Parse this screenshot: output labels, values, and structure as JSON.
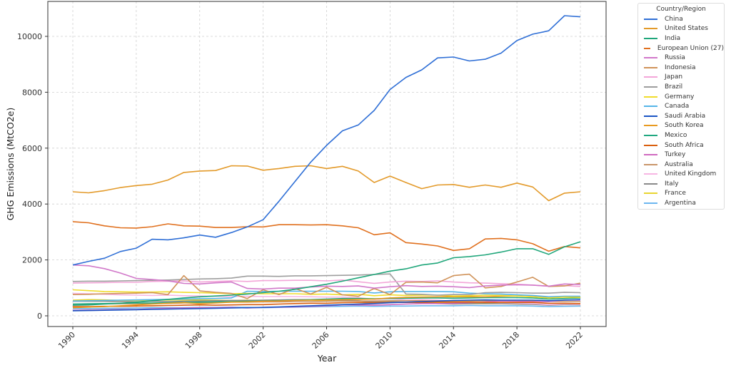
{
  "chart_data": {
    "type": "line",
    "title": "",
    "xlabel": "Year",
    "ylabel": "GHG Emissions (MtCO2e)",
    "xlim": [
      1987.5,
      2023.6
    ],
    "ylim": [
      -300,
      11200
    ],
    "grid": true,
    "legend_position": "outside-right-top",
    "legend_title": "Country/Region",
    "x_ticks": [
      1990,
      1994,
      1998,
      2002,
      2006,
      2010,
      2014,
      2018,
      2022
    ],
    "y_ticks": [
      0,
      2000,
      4000,
      6000,
      8000,
      10000
    ],
    "x": [
      1990,
      1991,
      1992,
      1993,
      1994,
      1995,
      1996,
      1997,
      1998,
      1999,
      2000,
      2001,
      2002,
      2003,
      2004,
      2005,
      2006,
      2007,
      2008,
      2009,
      2010,
      2011,
      2012,
      2013,
      2014,
      2015,
      2016,
      2017,
      2018,
      2019,
      2020,
      2021,
      2022
    ],
    "series": [
      {
        "name": "China",
        "color": "#2f6fd6",
        "values": [
          1820,
          1950,
          2060,
          2300,
          2420,
          2740,
          2720,
          2790,
          2890,
          2810,
          2980,
          3180,
          3440,
          4100,
          4800,
          5500,
          6100,
          6620,
          6830,
          7350,
          8100,
          8530,
          8800,
          9230,
          9260,
          9120,
          9180,
          9400,
          9850,
          10080,
          10200,
          10740,
          10700
        ]
      },
      {
        "name": "United States",
        "color": "#e39a2a",
        "values": [
          4440,
          4400,
          4480,
          4590,
          4660,
          4710,
          4860,
          5130,
          5180,
          5200,
          5370,
          5360,
          5210,
          5270,
          5350,
          5370,
          5270,
          5350,
          5180,
          4770,
          5000,
          4770,
          4550,
          4680,
          4700,
          4600,
          4680,
          4600,
          4750,
          4610,
          4120,
          4390,
          4440
        ]
      },
      {
        "name": "India",
        "color": "#1fa67a",
        "values": [
          380,
          390,
          420,
          450,
          490,
          540,
          590,
          640,
          680,
          710,
          740,
          780,
          830,
          880,
          950,
          1040,
          1130,
          1240,
          1360,
          1480,
          1600,
          1680,
          1820,
          1890,
          2080,
          2120,
          2180,
          2280,
          2400,
          2400,
          2200,
          2470,
          2650
        ]
      },
      {
        "name": "European Union (27)",
        "color": "#e0701e",
        "values": [
          3370,
          3330,
          3220,
          3150,
          3140,
          3190,
          3290,
          3220,
          3210,
          3160,
          3160,
          3190,
          3180,
          3260,
          3260,
          3250,
          3260,
          3220,
          3150,
          2900,
          2970,
          2620,
          2570,
          2500,
          2340,
          2400,
          2750,
          2770,
          2720,
          2580,
          2310,
          2480,
          2430
        ]
      },
      {
        "name": "Russia",
        "color": "#d178c9",
        "values": [
          1820,
          1790,
          1690,
          1530,
          1340,
          1300,
          1250,
          1160,
          1140,
          1180,
          1210,
          980,
          960,
          990,
          990,
          1030,
          1060,
          1050,
          1070,
          990,
          1040,
          1080,
          1050,
          1060,
          1040,
          1010,
          1070,
          1100,
          1110,
          1100,
          1060,
          1140,
          1120
        ]
      },
      {
        "name": "Indonesia",
        "color": "#d0935a",
        "values": [
          760,
          770,
          790,
          800,
          810,
          830,
          760,
          1440,
          890,
          840,
          800,
          620,
          930,
          760,
          980,
          780,
          1020,
          750,
          700,
          980,
          760,
          1200,
          1210,
          1180,
          1440,
          1490,
          1000,
          1050,
          1210,
          1380,
          1050,
          1070,
          1170
        ]
      },
      {
        "name": "Japan",
        "color": "#f3a6d8",
        "values": [
          1170,
          1180,
          1190,
          1200,
          1200,
          1230,
          1240,
          1250,
          1210,
          1230,
          1250,
          1230,
          1260,
          1260,
          1270,
          1270,
          1250,
          1280,
          1220,
          1160,
          1210,
          1240,
          1230,
          1250,
          1210,
          1180,
          1170,
          1150,
          1130,
          1100,
          1060,
          1080,
          1050
        ]
      },
      {
        "name": "Brazil",
        "color": "#9e9e9e",
        "values": [
          1230,
          1240,
          1240,
          1250,
          1260,
          1270,
          1280,
          1300,
          1320,
          1330,
          1350,
          1420,
          1420,
          1410,
          1430,
          1430,
          1440,
          1450,
          1460,
          1480,
          1500,
          780,
          770,
          740,
          760,
          760,
          830,
          840,
          830,
          810,
          810,
          840,
          830
        ]
      },
      {
        "name": "Germany",
        "color": "#f0dc2c",
        "values": [
          930,
          900,
          870,
          860,
          850,
          850,
          860,
          840,
          830,
          810,
          790,
          800,
          790,
          790,
          790,
          770,
          780,
          750,
          770,
          720,
          750,
          730,
          740,
          740,
          710,
          720,
          740,
          730,
          710,
          680,
          640,
          670,
          660
        ]
      },
      {
        "name": "Canada",
        "color": "#55b5e8",
        "values": [
          530,
          540,
          550,
          560,
          570,
          580,
          590,
          600,
          610,
          620,
          640,
          880,
          870,
          880,
          880,
          880,
          880,
          880,
          870,
          820,
          860,
          870,
          870,
          870,
          860,
          810,
          790,
          780,
          750,
          730,
          680,
          700,
          700
        ]
      },
      {
        "name": "Saudi Arabia",
        "color": "#1a55c4",
        "values": [
          180,
          190,
          200,
          210,
          220,
          230,
          240,
          250,
          260,
          270,
          280,
          290,
          300,
          320,
          340,
          360,
          380,
          400,
          420,
          440,
          470,
          490,
          510,
          530,
          550,
          560,
          570,
          560,
          560,
          560,
          540,
          560,
          580
        ]
      },
      {
        "name": "South Korea",
        "color": "#e89a20",
        "values": [
          290,
          310,
          330,
          360,
          390,
          420,
          450,
          470,
          430,
          460,
          490,
          500,
          520,
          530,
          550,
          560,
          570,
          580,
          590,
          600,
          640,
          660,
          670,
          680,
          680,
          680,
          680,
          700,
          710,
          690,
          650,
          680,
          670
        ]
      },
      {
        "name": "Mexico",
        "color": "#20a880",
        "values": [
          420,
          430,
          440,
          450,
          460,
          460,
          470,
          480,
          490,
          500,
          510,
          520,
          530,
          540,
          560,
          580,
          600,
          620,
          620,
          610,
          620,
          630,
          640,
          640,
          630,
          640,
          650,
          650,
          650,
          640,
          600,
          620,
          640
        ]
      },
      {
        "name": "South Africa",
        "color": "#d95f0e",
        "values": [
          330,
          330,
          340,
          340,
          350,
          360,
          370,
          380,
          390,
          380,
          390,
          400,
          400,
          420,
          440,
          450,
          450,
          470,
          480,
          470,
          480,
          480,
          480,
          490,
          490,
          490,
          480,
          480,
          480,
          480,
          450,
          450,
          440
        ]
      },
      {
        "name": "Turkey",
        "color": "#d06ac0",
        "values": [
          200,
          210,
          220,
          230,
          230,
          250,
          270,
          280,
          290,
          290,
          300,
          280,
          300,
          310,
          320,
          340,
          360,
          390,
          390,
          380,
          400,
          420,
          440,
          440,
          450,
          470,
          500,
          530,
          520,
          510,
          510,
          560,
          560
        ]
      },
      {
        "name": "Australia",
        "color": "#c9956a",
        "values": [
          420,
          420,
          430,
          430,
          440,
          440,
          450,
          460,
          470,
          480,
          490,
          490,
          500,
          500,
          510,
          510,
          520,
          530,
          530,
          530,
          540,
          540,
          540,
          530,
          530,
          530,
          540,
          540,
          540,
          530,
          520,
          510,
          510
        ]
      },
      {
        "name": "United Kingdom",
        "color": "#f7b6e3",
        "values": [
          800,
          790,
          770,
          750,
          740,
          730,
          740,
          720,
          710,
          700,
          690,
          700,
          690,
          690,
          690,
          680,
          670,
          670,
          650,
          590,
          610,
          570,
          580,
          560,
          520,
          500,
          480,
          470,
          460,
          440,
          400,
          420,
          410
        ]
      },
      {
        "name": "Italy",
        "color": "#8a8a8a",
        "values": [
          520,
          520,
          520,
          510,
          500,
          520,
          510,
          520,
          530,
          540,
          550,
          550,
          560,
          570,
          580,
          580,
          570,
          560,
          540,
          490,
          500,
          490,
          470,
          440,
          420,
          430,
          430,
          430,
          420,
          410,
          380,
          400,
          400
        ]
      },
      {
        "name": "France",
        "color": "#e8d530",
        "values": [
          560,
          580,
          570,
          550,
          550,
          560,
          570,
          560,
          570,
          560,
          550,
          560,
          550,
          560,
          560,
          560,
          540,
          530,
          530,
          510,
          510,
          480,
          480,
          480,
          450,
          450,
          450,
          450,
          440,
          430,
          390,
          410,
          400
        ]
      },
      {
        "name": "Argentina",
        "color": "#6cb6ef",
        "values": [
          260,
          260,
          270,
          270,
          280,
          290,
          290,
          290,
          300,
          300,
          310,
          300,
          290,
          300,
          310,
          320,
          330,
          340,
          350,
          340,
          350,
          350,
          360,
          360,
          360,
          370,
          360,
          360,
          360,
          350,
          330,
          340,
          350
        ]
      }
    ]
  }
}
